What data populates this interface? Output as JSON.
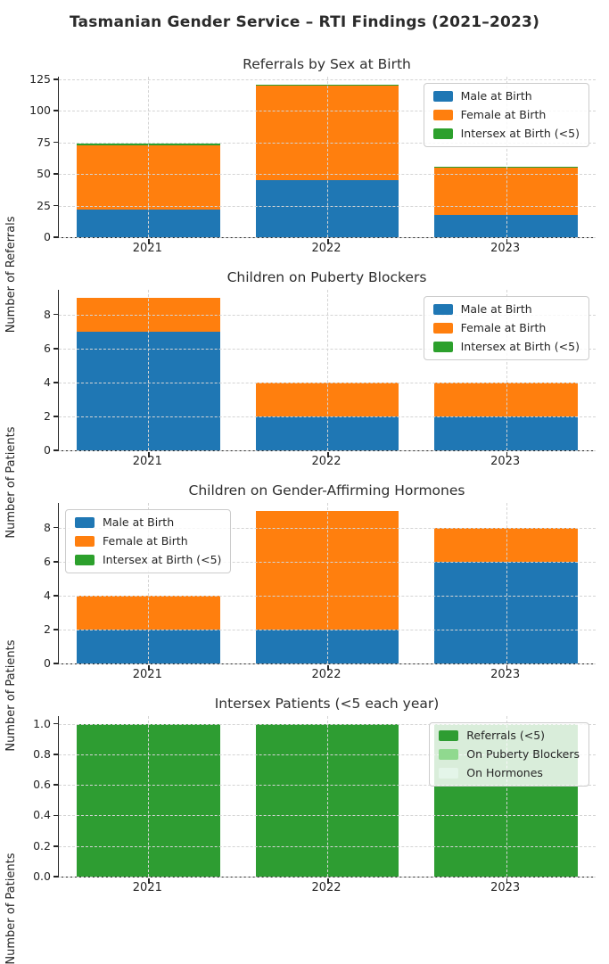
{
  "page": {
    "title": "Tasmanian Gender Service – RTI Findings (2021–2023)"
  },
  "colors": {
    "male_blue": "#1f77b4",
    "female_orange": "#ff7f0e",
    "intersex_green": "#2ca02c",
    "referrals_green": "#2e9d32",
    "blockers_light_green": "#90d98f",
    "hormones_pale_green": "#e4f5e9",
    "axis": "#262626",
    "gridline": "#d4d4d4"
  },
  "chart_data": [
    {
      "type": "bar",
      "stacked": true,
      "title": "Referrals by Sex at Birth",
      "ylabel": "Number of Referrals",
      "categories": [
        "2021",
        "2022",
        "2023"
      ],
      "series": [
        {
          "name": "Male at Birth",
          "color": "#1f77b4",
          "values": [
            22,
            45,
            18
          ]
        },
        {
          "name": "Female at Birth",
          "color": "#ff7f0e",
          "values": [
            51,
            75,
            37
          ]
        },
        {
          "name": "Intersex at Birth (<5)",
          "color": "#2ca02c",
          "values": [
            1,
            1,
            1
          ]
        }
      ],
      "totals": [
        74,
        121,
        56
      ],
      "ytick_labels": [
        "0",
        "25",
        "50",
        "75",
        "100",
        "125"
      ],
      "ylim": [
        0,
        127
      ],
      "grid": "dashed horizontal at yticks + vertical at category centers",
      "legend_position": "top-right"
    },
    {
      "type": "bar",
      "stacked": true,
      "title": "Children on Puberty Blockers",
      "ylabel": "Number of Patients",
      "categories": [
        "2021",
        "2022",
        "2023"
      ],
      "series": [
        {
          "name": "Male at Birth",
          "color": "#1f77b4",
          "values": [
            7,
            2,
            2
          ]
        },
        {
          "name": "Female at Birth",
          "color": "#ff7f0e",
          "values": [
            2,
            2,
            2
          ]
        },
        {
          "name": "Intersex at Birth (<5)",
          "color": "#2ca02c",
          "values": [
            0,
            0,
            0
          ]
        }
      ],
      "totals": [
        9,
        4,
        4
      ],
      "ytick_labels": [
        "0",
        "2",
        "4",
        "6",
        "8"
      ],
      "ylim": [
        0,
        9.45
      ],
      "grid": "dashed horizontal at yticks + vertical at category centers",
      "legend_position": "top-right"
    },
    {
      "type": "bar",
      "stacked": true,
      "title": "Children on Gender-Affirming Hormones",
      "ylabel": "Number of Patients",
      "categories": [
        "2021",
        "2022",
        "2023"
      ],
      "series": [
        {
          "name": "Male at Birth",
          "color": "#1f77b4",
          "values": [
            2,
            2,
            6
          ]
        },
        {
          "name": "Female at Birth",
          "color": "#ff7f0e",
          "values": [
            2,
            7,
            2
          ]
        },
        {
          "name": "Intersex at Birth (<5)",
          "color": "#2ca02c",
          "values": [
            0,
            0,
            0
          ]
        }
      ],
      "totals": [
        4,
        9,
        8
      ],
      "ytick_labels": [
        "0",
        "2",
        "4",
        "6",
        "8"
      ],
      "ylim": [
        0,
        9.45
      ],
      "grid": "dashed horizontal at yticks + vertical at category centers",
      "legend_position": "top-left"
    },
    {
      "type": "bar",
      "stacked": true,
      "title": "Intersex Patients (<5 each year)",
      "ylabel": "Number of Patients",
      "categories": [
        "2021",
        "2022",
        "2023"
      ],
      "series": [
        {
          "name": "Referrals (<5)",
          "color": "#2e9d32",
          "values": [
            1.0,
            1.0,
            1.0
          ]
        },
        {
          "name": "On Puberty Blockers",
          "color": "#90d98f",
          "values": [
            0,
            0,
            0
          ]
        },
        {
          "name": "On Hormones",
          "color": "#e4f5e9",
          "values": [
            0,
            0,
            0
          ]
        }
      ],
      "totals": [
        1.0,
        1.0,
        1.0
      ],
      "ytick_labels": [
        "0.0",
        "0.2",
        "0.4",
        "0.6",
        "0.8",
        "1.0"
      ],
      "ylim": [
        0,
        1.05
      ],
      "grid": "dashed horizontal at yticks + vertical at category centers",
      "legend_position": "top-right"
    }
  ]
}
